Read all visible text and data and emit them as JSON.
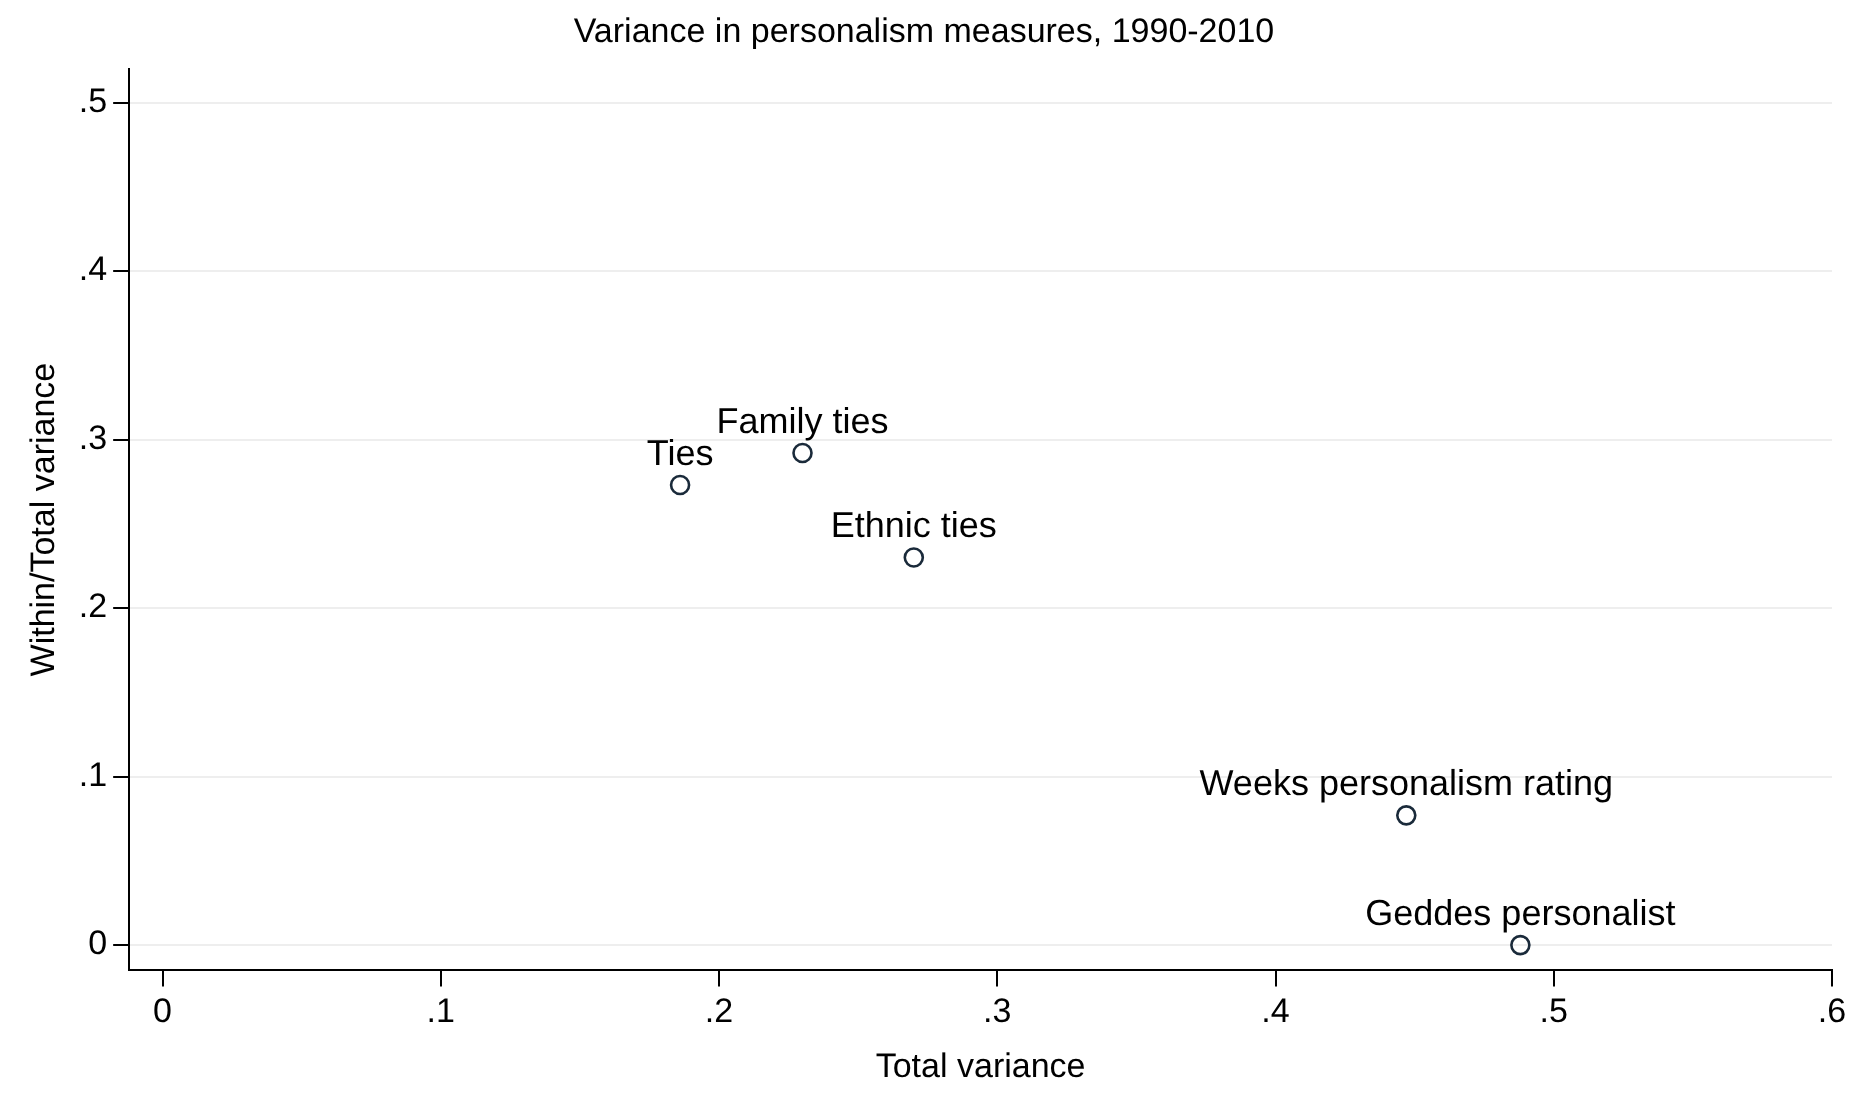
{
  "chart_data": {
    "type": "scatter",
    "title": "Variance in personalism measures, 1990-2010",
    "xlabel": "Total variance",
    "ylabel": "Within/Total variance",
    "x": [
      0.186,
      0.23,
      0.27,
      0.447,
      0.488
    ],
    "series": [
      {
        "color": "#1a2a3a",
        "values": [
          0.273,
          0.292,
          0.23,
          0.077,
          0
        ]
      }
    ],
    "annotations": [
      {
        "text": "Ties",
        "x": 0.186,
        "y": 0.273
      },
      {
        "text": "Family ties",
        "x": 0.23,
        "y": 0.292
      },
      {
        "text": "Ethnic ties",
        "x": 0.27,
        "y": 0.23
      },
      {
        "text": "Weeks personalism rating",
        "x": 0.447,
        "y": 0.077
      },
      {
        "text": "Geddes personalist",
        "x": 0.488,
        "y": 0
      }
    ],
    "xlim": [
      -0.012,
      0.6
    ],
    "ylim": [
      -0.015,
      0.52
    ],
    "xticks": [
      0,
      {
        "value": 0.1,
        "label": ".1"
      },
      {
        "value": 0.2,
        "label": ".2"
      },
      {
        "value": 0.3,
        "label": ".3"
      },
      {
        "value": 0.4,
        "label": ".4"
      },
      {
        "value": 0.5,
        "label": ".5"
      },
      {
        "value": 0.6,
        "label": ".6"
      }
    ],
    "yticks": [
      0,
      {
        "value": 0.1,
        "label": ".1"
      },
      {
        "value": 0.2,
        "label": ".2"
      },
      {
        "value": 0.3,
        "label": ".3"
      },
      {
        "value": 0.4,
        "label": ".4"
      },
      {
        "value": 0.5,
        "label": ".5"
      }
    ],
    "grid": "y",
    "legend": false,
    "marker": "circle"
  }
}
